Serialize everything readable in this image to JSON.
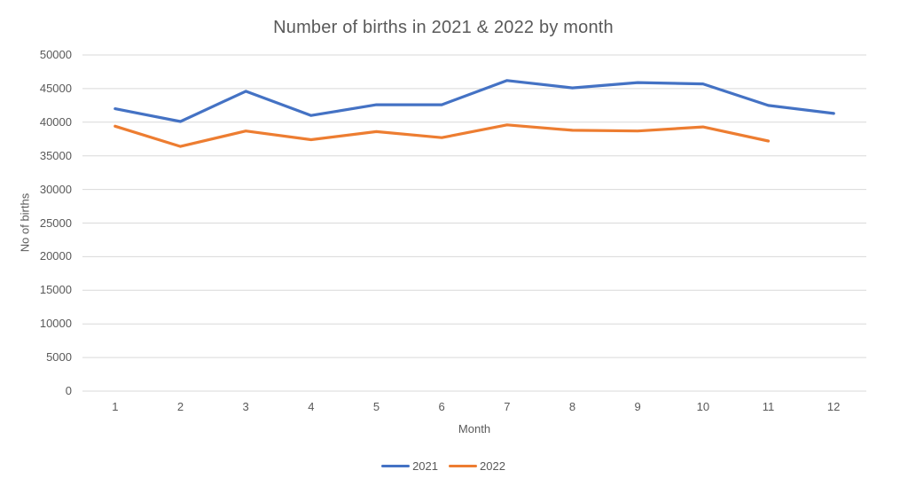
{
  "chart_data": {
    "type": "line",
    "title": "Number of births in 2021 & 2022 by month",
    "xlabel": "Month",
    "ylabel": "No of births",
    "categories": [
      "1",
      "2",
      "3",
      "4",
      "5",
      "6",
      "7",
      "8",
      "9",
      "10",
      "11",
      "12"
    ],
    "series": [
      {
        "name": "2021",
        "color": "#4472C4",
        "values": [
          42000,
          40100,
          44600,
          41000,
          42600,
          42600,
          46200,
          45100,
          45900,
          45700,
          42500,
          41300
        ]
      },
      {
        "name": "2022",
        "color": "#ED7D31",
        "values": [
          39400,
          36400,
          38700,
          37400,
          38600,
          37700,
          39600,
          38800,
          38700,
          39300,
          37200,
          null
        ]
      }
    ],
    "ylim": [
      0,
      50000
    ],
    "ytick_step": 5000,
    "yticks": [
      "0",
      "5000",
      "10000",
      "15000",
      "20000",
      "25000",
      "30000",
      "35000",
      "40000",
      "45000",
      "50000"
    ],
    "grid": true,
    "grid_color": "#D9D9D9",
    "text_color": "#595959",
    "legend_position": "bottom",
    "legend": [
      "2021",
      "2022"
    ]
  }
}
